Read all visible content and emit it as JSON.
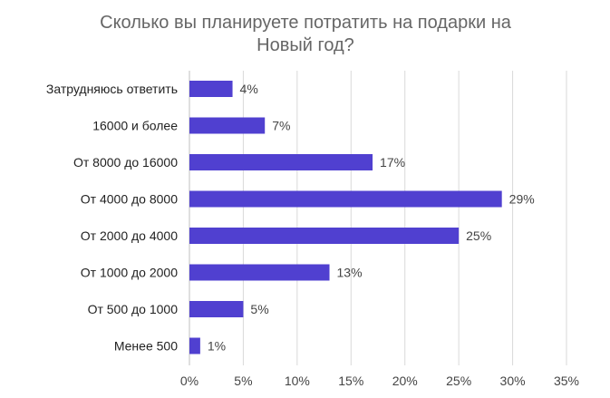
{
  "chart_data": {
    "type": "bar",
    "orientation": "horizontal",
    "title_lines": [
      "Сколько вы планируете потратить на подарки на",
      "Новый год?"
    ],
    "categories": [
      "Затрудняюсь ответить",
      "16000 и более",
      "От 8000 до 16000",
      "От 4000 до 8000",
      "От 2000 до 4000",
      "От 1000 до 2000",
      "От 500 до 1000",
      "Менее 500"
    ],
    "values": [
      4,
      7,
      17,
      29,
      25,
      13,
      5,
      1
    ],
    "value_labels": [
      "4%",
      "7%",
      "17%",
      "29%",
      "25%",
      "13%",
      "5%",
      "1%"
    ],
    "xlim": [
      0,
      35
    ],
    "x_ticks": [
      0,
      5,
      10,
      15,
      20,
      25,
      30,
      35
    ],
    "x_tick_labels": [
      "0%",
      "5%",
      "10%",
      "15%",
      "20%",
      "25%",
      "30%",
      "35%"
    ],
    "grid": true,
    "legend": "none",
    "bar_color": "#5040d0"
  }
}
